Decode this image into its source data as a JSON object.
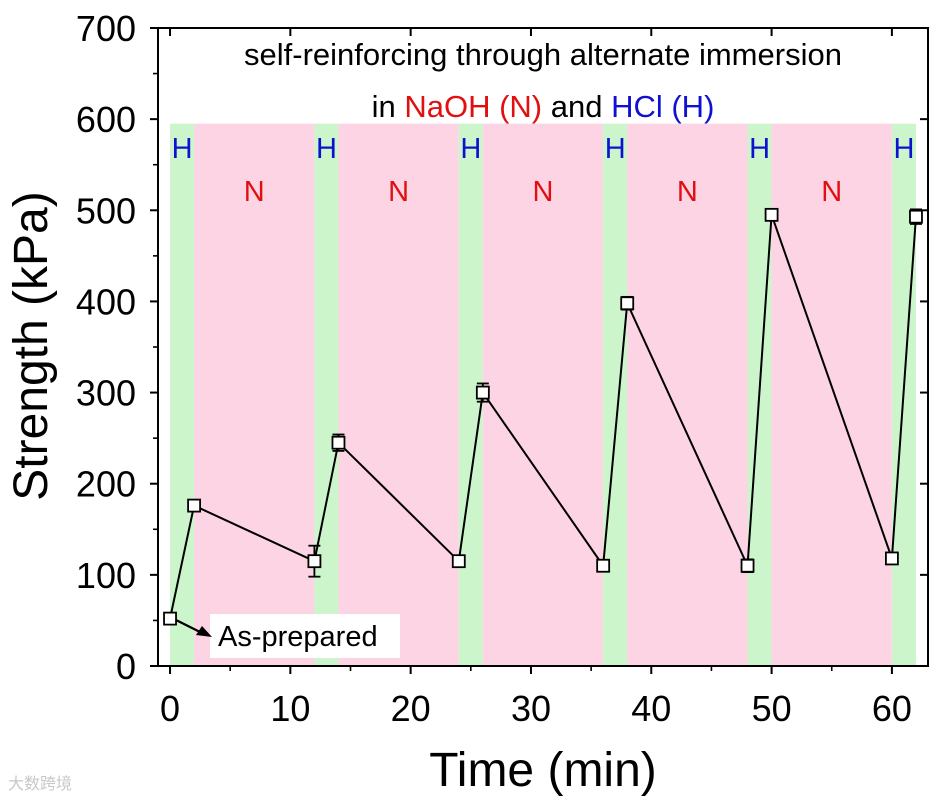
{
  "chart_data": {
    "type": "line",
    "title_line1": "self-reinforcing through alternate immersion",
    "title_line2": {
      "prefix": "in ",
      "naoh": "NaOH (N)",
      "middle": " and ",
      "hcl": "HCl (H)"
    },
    "xlabel": "Time (min)",
    "ylabel": "Strength (kPa)",
    "xlim": [
      -1,
      63
    ],
    "ylim": [
      0,
      700
    ],
    "x_ticks": [
      0,
      10,
      20,
      30,
      40,
      50,
      60
    ],
    "y_ticks": [
      0,
      100,
      200,
      300,
      400,
      500,
      600,
      700
    ],
    "grid": false,
    "annotation": "As-prepared",
    "phase_top": 595,
    "phases": [
      {
        "label": "H",
        "start": 0,
        "end": 2,
        "color": "#ccf5cc",
        "label_color": "#1010d0"
      },
      {
        "label": "N",
        "start": 2,
        "end": 12,
        "color": "#fcd4e4",
        "label_color": "#e01010"
      },
      {
        "label": "H",
        "start": 12,
        "end": 14,
        "color": "#ccf5cc",
        "label_color": "#1010d0"
      },
      {
        "label": "N",
        "start": 14,
        "end": 24,
        "color": "#fcd4e4",
        "label_color": "#e01010"
      },
      {
        "label": "H",
        "start": 24,
        "end": 26,
        "color": "#ccf5cc",
        "label_color": "#1010d0"
      },
      {
        "label": "N",
        "start": 26,
        "end": 36,
        "color": "#fcd4e4",
        "label_color": "#e01010"
      },
      {
        "label": "H",
        "start": 36,
        "end": 38,
        "color": "#ccf5cc",
        "label_color": "#1010d0"
      },
      {
        "label": "N",
        "start": 38,
        "end": 48,
        "color": "#fcd4e4",
        "label_color": "#e01010"
      },
      {
        "label": "H",
        "start": 48,
        "end": 50,
        "color": "#ccf5cc",
        "label_color": "#1010d0"
      },
      {
        "label": "N",
        "start": 50,
        "end": 60,
        "color": "#fcd4e4",
        "label_color": "#e01010"
      },
      {
        "label": "H",
        "start": 60,
        "end": 62,
        "color": "#ccf5cc",
        "label_color": "#1010d0"
      }
    ],
    "series": [
      {
        "name": "Strength",
        "x": [
          0,
          2,
          12,
          14,
          24,
          26,
          36,
          38,
          48,
          50,
          60,
          62
        ],
        "y": [
          52,
          176,
          115,
          245,
          115,
          300,
          110,
          398,
          110,
          495,
          118,
          493
        ],
        "err": [
          6,
          5,
          17,
          9,
          6,
          10,
          6,
          7,
          7,
          5,
          5,
          8
        ]
      }
    ],
    "colors": {
      "naoh_text": "#e01010",
      "hcl_text": "#1010d0",
      "line": "#000000"
    }
  },
  "watermark": "大数跨境"
}
